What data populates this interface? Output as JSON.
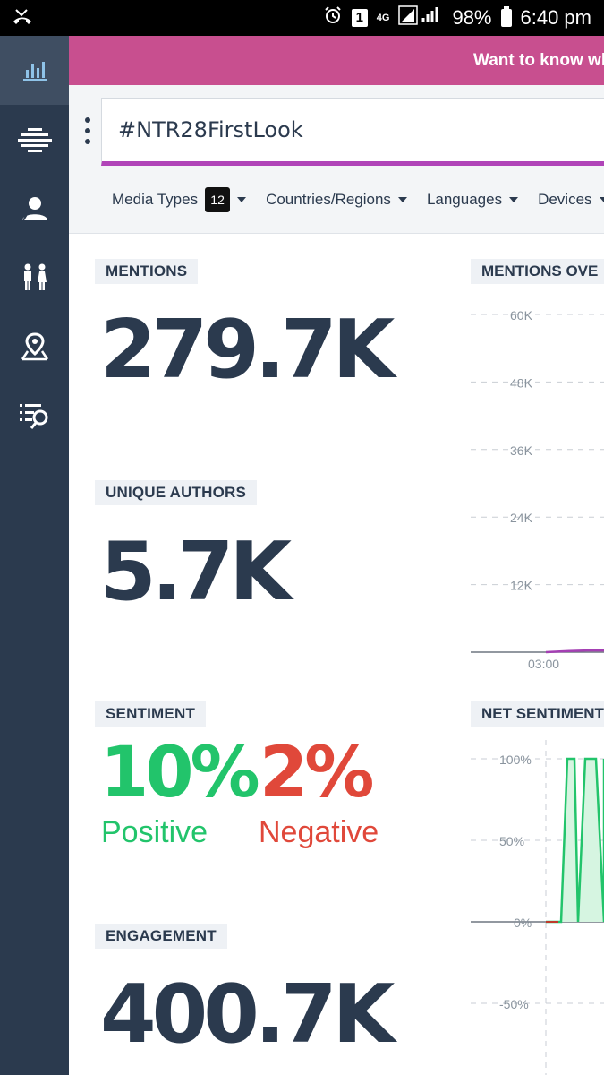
{
  "status_bar": {
    "sim_badge": "1",
    "network": "4G",
    "battery": "98%",
    "time": "6:40 pm"
  },
  "sidebar": {
    "items": [
      {
        "icon": "bar-chart-icon",
        "active": true
      },
      {
        "icon": "topics-icon",
        "active": false
      },
      {
        "icon": "user-profile-icon",
        "active": false
      },
      {
        "icon": "demographics-icon",
        "active": false
      },
      {
        "icon": "map-pin-icon",
        "active": false
      },
      {
        "icon": "search-list-icon",
        "active": false
      }
    ]
  },
  "banner": {
    "text": "Want to know wh"
  },
  "search": {
    "query": "#NTR28FirstLook"
  },
  "filters": {
    "media_types": {
      "label": "Media Types",
      "count": "12"
    },
    "countries": {
      "label": "Countries/Regions"
    },
    "languages": {
      "label": "Languages"
    },
    "devices": {
      "label": "Devices"
    }
  },
  "metrics": {
    "mentions": {
      "label": "MENTIONS",
      "value": "279.7K"
    },
    "unique_authors": {
      "label": "UNIQUE AUTHORS",
      "value": "5.7K"
    },
    "sentiment": {
      "label": "SENTIMENT",
      "positive_pct": "10%",
      "positive_label": "Positive",
      "negative_pct": "2%",
      "negative_label": "Negative"
    },
    "engagement": {
      "label": "ENGAGEMENT",
      "value": "400.7K"
    }
  },
  "colors": {
    "sidebar": "#2b3a4e",
    "banner": "#c84f8f",
    "accent": "#b044b8",
    "positive": "#22c46b",
    "negative": "#e0483a"
  },
  "chart_data": [
    {
      "type": "line",
      "title": "MENTIONS OVE",
      "y_ticks": [
        "60K",
        "48K",
        "36K",
        "24K",
        "12K"
      ],
      "ylim": [
        0,
        60000
      ],
      "x_ticks": [
        "03:00"
      ],
      "series": [
        {
          "values": [
            0,
            200,
            300,
            300
          ]
        }
      ]
    },
    {
      "type": "area",
      "title": "NET SENTIMENT",
      "y_ticks": [
        "100%",
        "50%",
        "0%",
        "-50%"
      ],
      "ylim": [
        -50,
        100
      ],
      "series": [
        {
          "values": [
            0,
            0,
            0,
            100,
            100,
            0,
            100,
            100,
            100,
            0,
            100
          ]
        }
      ]
    }
  ]
}
